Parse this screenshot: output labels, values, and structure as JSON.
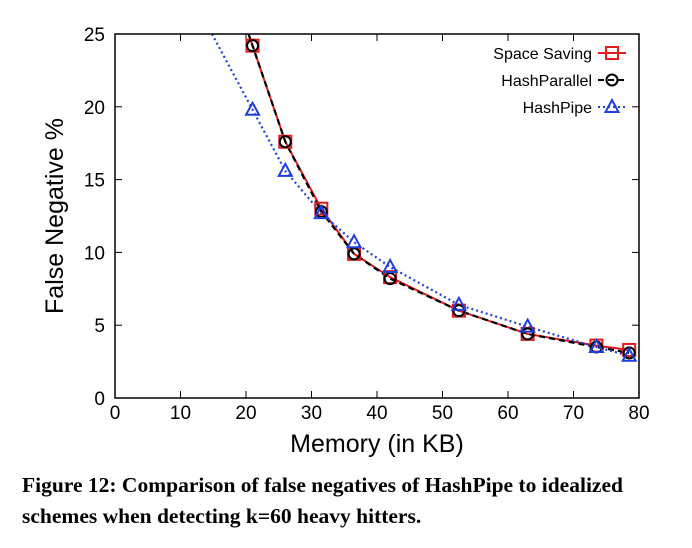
{
  "chart_data": {
    "type": "line",
    "xlabel": "Memory (in KB)",
    "ylabel": "False Negative %",
    "xlim": [
      0,
      80
    ],
    "ylim": [
      0,
      25
    ],
    "xticks": [
      "0",
      "10",
      "20",
      "30",
      "40",
      "50",
      "60",
      "70",
      "80"
    ],
    "yticks": [
      "0",
      "5",
      "10",
      "15",
      "20",
      "25"
    ],
    "legend_position": "top-right",
    "series": [
      {
        "name": "Space Saving",
        "color": "#e41a1c",
        "marker": "square",
        "line": "solid",
        "x": [
          21,
          26,
          31.5,
          36.5,
          42,
          52.5,
          63,
          73.5,
          78.5
        ],
        "y": [
          24.2,
          17.6,
          13.0,
          9.9,
          8.3,
          6.0,
          4.4,
          3.6,
          3.3
        ]
      },
      {
        "name": "HashParallel",
        "color": "#000000",
        "marker": "circle",
        "line": "dashed",
        "x": [
          21,
          26,
          31.5,
          36.5,
          42,
          52.5,
          63,
          73.5,
          78.5
        ],
        "y": [
          24.2,
          17.6,
          12.8,
          9.9,
          8.2,
          6.0,
          4.4,
          3.5,
          3.1
        ]
      },
      {
        "name": "HashPipe",
        "color": "#1f3fdd",
        "marker": "triangle",
        "line": "dotted",
        "x": [
          21,
          26,
          31.5,
          36.5,
          42,
          52.5,
          63,
          73.5,
          78.5
        ],
        "y": [
          19.8,
          15.6,
          12.7,
          10.7,
          9.0,
          6.4,
          4.9,
          3.5,
          2.9
        ]
      }
    ]
  },
  "caption": {
    "text": "Figure 12: Comparison of false negatives of HashPipe to idealized schemes when detecting k=60 heavy hitters."
  }
}
